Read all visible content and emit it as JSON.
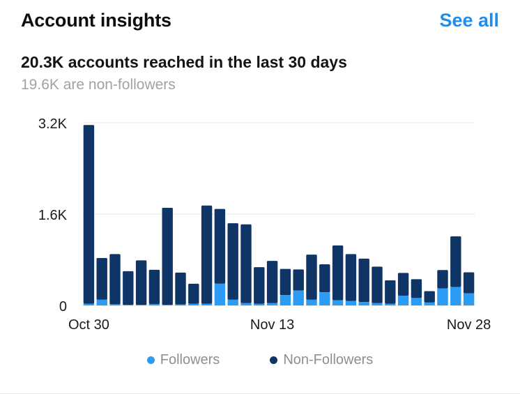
{
  "header": {
    "title": "Account insights",
    "see_all": "See all"
  },
  "summary": {
    "headline": "20.3K accounts reached in the last 30 days",
    "subline": "19.6K are non-followers"
  },
  "colors": {
    "followers": "#2b9bf4",
    "non_followers": "#0f3566",
    "gridline": "#e9e9e9",
    "accent": "#1d8ef0"
  },
  "chart_data": {
    "type": "bar",
    "stacked": true,
    "title": "",
    "xlabel": "",
    "ylabel": "",
    "ylim": [
      0,
      3200
    ],
    "yticks": [
      0,
      1600,
      3200
    ],
    "ytick_labels": [
      "0",
      "1.6K",
      "3.2K"
    ],
    "xtick_labels": [
      "Oct 30",
      "Nov 13",
      "Nov 28"
    ],
    "grid": true,
    "legend_position": "bottom",
    "categories": [
      "Oct 30",
      "Oct 31",
      "Nov 1",
      "Nov 2",
      "Nov 3",
      "Nov 4",
      "Nov 5",
      "Nov 6",
      "Nov 7",
      "Nov 8",
      "Nov 9",
      "Nov 10",
      "Nov 11",
      "Nov 12",
      "Nov 13",
      "Nov 14",
      "Nov 15",
      "Nov 16",
      "Nov 17",
      "Nov 18",
      "Nov 19",
      "Nov 20",
      "Nov 21",
      "Nov 22",
      "Nov 23",
      "Nov 24",
      "Nov 25",
      "Nov 26",
      "Nov 27",
      "Nov 28"
    ],
    "series": [
      {
        "name": "Followers",
        "values": [
          30,
          100,
          20,
          10,
          10,
          25,
          10,
          15,
          30,
          30,
          380,
          100,
          40,
          30,
          40,
          180,
          260,
          100,
          230,
          90,
          80,
          60,
          40,
          30,
          170,
          130,
          50,
          300,
          320,
          210
        ]
      },
      {
        "name": "Non-Followers",
        "values": [
          3130,
          730,
          880,
          590,
          780,
          600,
          1700,
          560,
          350,
          1720,
          1310,
          1340,
          1380,
          640,
          740,
          460,
          370,
          790,
          490,
          960,
          820,
          760,
          640,
          410,
          400,
          330,
          200,
          320,
          890,
          370
        ]
      }
    ]
  }
}
